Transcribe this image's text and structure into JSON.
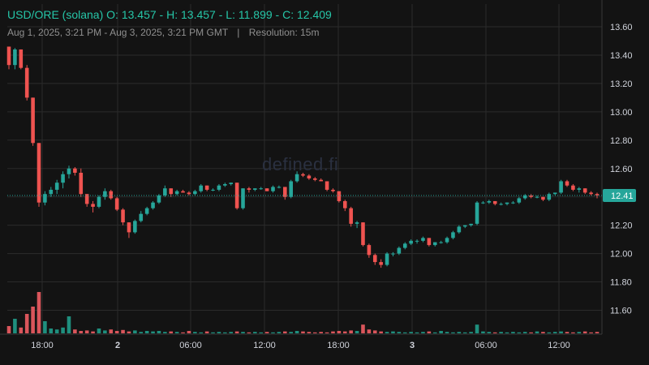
{
  "header": {
    "symbol": "USD/ORE (solana)",
    "open_label": "O:",
    "open": "13.457",
    "high_label": "H:",
    "high": "13.457",
    "low_label": "L:",
    "low": "11.899",
    "close_label": "C:",
    "close": "12.409",
    "date_range": "Aug 1, 2025, 3:21 PM - Aug 3, 2025, 3:21 PM GMT",
    "separator": "|",
    "resolution": "Resolution: 15m"
  },
  "watermark": "defined.fi",
  "colors": {
    "background": "#131313",
    "grid": "#2b2b2b",
    "up": "#26a69a",
    "down": "#ef5350",
    "up_volume": "#1f8f7e",
    "down_volume": "#d9555b",
    "price_line": "#26a69a",
    "axis_text": "#d1d4dc"
  },
  "chart_data": {
    "type": "candlestick",
    "title": "USD/ORE (solana)",
    "resolution": "15m",
    "y_axis": {
      "ticks": [
        "13.60",
        "13.40",
        "13.20",
        "13.00",
        "12.80",
        "12.60",
        "12.40",
        "12.20",
        "12.00",
        "11.80",
        "11.60"
      ],
      "range": [
        11.49,
        13.64
      ],
      "scale": "linear",
      "position": "right"
    },
    "x_axis": {
      "ticks": [
        {
          "label": "18:00",
          "bold": false
        },
        {
          "label": "2",
          "bold": true
        },
        {
          "label": "06:00",
          "bold": false
        },
        {
          "label": "12:00",
          "bold": false
        },
        {
          "label": "18:00",
          "bold": false
        },
        {
          "label": "3",
          "bold": true
        },
        {
          "label": "06:00",
          "bold": false
        },
        {
          "label": "12:00",
          "bold": false
        }
      ]
    },
    "last_price": {
      "value": 12.41,
      "label": "12.41"
    },
    "grid": true,
    "candles": [
      [
        13.46,
        13.46,
        13.3,
        13.33
      ],
      [
        13.33,
        13.45,
        13.3,
        13.44
      ],
      [
        13.44,
        13.44,
        13.3,
        13.31
      ],
      [
        13.31,
        13.33,
        13.08,
        13.1
      ],
      [
        13.1,
        13.1,
        12.76,
        12.78
      ],
      [
        12.78,
        12.78,
        12.33,
        12.36
      ],
      [
        12.36,
        12.44,
        12.34,
        12.42
      ],
      [
        12.42,
        12.47,
        12.4,
        12.45
      ],
      [
        12.45,
        12.52,
        12.42,
        12.5
      ],
      [
        12.5,
        12.58,
        12.46,
        12.56
      ],
      [
        12.56,
        12.62,
        12.53,
        12.6
      ],
      [
        12.6,
        12.61,
        12.55,
        12.57
      ],
      [
        12.57,
        12.6,
        12.4,
        12.42
      ],
      [
        12.42,
        12.42,
        12.33,
        12.35
      ],
      [
        12.35,
        12.37,
        12.29,
        12.33
      ],
      [
        12.33,
        12.41,
        12.32,
        12.4
      ],
      [
        12.4,
        12.46,
        12.38,
        12.44
      ],
      [
        12.44,
        12.45,
        12.38,
        12.39
      ],
      [
        12.39,
        12.4,
        12.3,
        12.31
      ],
      [
        12.31,
        12.32,
        12.2,
        12.22
      ],
      [
        12.22,
        12.22,
        12.11,
        12.15
      ],
      [
        12.15,
        12.24,
        12.14,
        12.23
      ],
      [
        12.23,
        12.3,
        12.22,
        12.28
      ],
      [
        12.28,
        12.33,
        12.27,
        12.32
      ],
      [
        12.32,
        12.37,
        12.31,
        12.36
      ],
      [
        12.36,
        12.42,
        12.35,
        12.41
      ],
      [
        12.41,
        12.48,
        12.4,
        12.46
      ],
      [
        12.46,
        12.46,
        12.4,
        12.42
      ],
      [
        12.42,
        12.45,
        12.41,
        12.44
      ],
      [
        12.44,
        12.45,
        12.43,
        12.43
      ],
      [
        12.43,
        12.44,
        12.41,
        12.42
      ],
      [
        12.42,
        12.45,
        12.41,
        12.44
      ],
      [
        12.44,
        12.49,
        12.43,
        12.48
      ],
      [
        12.48,
        12.48,
        12.44,
        12.45
      ],
      [
        12.45,
        12.46,
        12.44,
        12.45
      ],
      [
        12.45,
        12.49,
        12.44,
        12.48
      ],
      [
        12.48,
        12.5,
        12.47,
        12.49
      ],
      [
        12.49,
        12.5,
        12.48,
        12.5
      ],
      [
        12.5,
        12.5,
        12.31,
        12.32
      ],
      [
        12.32,
        12.46,
        12.31,
        12.46
      ],
      [
        12.46,
        12.47,
        12.43,
        12.45
      ],
      [
        12.45,
        12.46,
        12.44,
        12.46
      ],
      [
        12.46,
        12.47,
        12.45,
        12.46
      ],
      [
        12.46,
        12.46,
        12.44,
        12.44
      ],
      [
        12.44,
        12.48,
        12.43,
        12.47
      ],
      [
        12.47,
        12.48,
        12.46,
        12.47
      ],
      [
        12.47,
        12.47,
        12.38,
        12.4
      ],
      [
        12.4,
        12.52,
        12.39,
        12.51
      ],
      [
        12.51,
        12.58,
        12.5,
        12.56
      ],
      [
        12.56,
        12.57,
        12.54,
        12.55
      ],
      [
        12.55,
        12.56,
        12.52,
        12.53
      ],
      [
        12.53,
        12.54,
        12.51,
        12.52
      ],
      [
        12.52,
        12.53,
        12.51,
        12.51
      ],
      [
        12.51,
        12.51,
        12.44,
        12.45
      ],
      [
        12.45,
        12.46,
        12.43,
        12.44
      ],
      [
        12.44,
        12.44,
        12.36,
        12.37
      ],
      [
        12.37,
        12.38,
        12.3,
        12.32
      ],
      [
        12.32,
        12.33,
        12.19,
        12.21
      ],
      [
        12.21,
        12.23,
        12.18,
        12.22
      ],
      [
        12.22,
        12.22,
        12.05,
        12.06
      ],
      [
        12.06,
        12.07,
        11.97,
        11.99
      ],
      [
        11.99,
        12.0,
        11.92,
        11.94
      ],
      [
        11.94,
        11.96,
        11.9,
        11.92
      ],
      [
        11.92,
        12.01,
        11.91,
        12.0
      ],
      [
        12.0,
        12.01,
        11.98,
        12.0
      ],
      [
        12.0,
        12.05,
        11.99,
        12.04
      ],
      [
        12.04,
        12.08,
        12.03,
        12.07
      ],
      [
        12.07,
        12.1,
        12.06,
        12.09
      ],
      [
        12.09,
        12.1,
        12.07,
        12.09
      ],
      [
        12.09,
        12.12,
        12.08,
        12.11
      ],
      [
        12.11,
        12.11,
        12.05,
        12.06
      ],
      [
        12.06,
        12.08,
        12.05,
        12.08
      ],
      [
        12.08,
        12.09,
        12.07,
        12.08
      ],
      [
        12.08,
        12.12,
        12.07,
        12.11
      ],
      [
        12.11,
        12.16,
        12.1,
        12.15
      ],
      [
        12.15,
        12.2,
        12.14,
        12.19
      ],
      [
        12.19,
        12.2,
        12.18,
        12.2
      ],
      [
        12.2,
        12.21,
        12.19,
        12.21
      ],
      [
        12.21,
        12.37,
        12.2,
        12.36
      ],
      [
        12.36,
        12.37,
        12.35,
        12.36
      ],
      [
        12.36,
        12.38,
        12.35,
        12.37
      ],
      [
        12.37,
        12.37,
        12.34,
        12.35
      ],
      [
        12.35,
        12.36,
        12.34,
        12.35
      ],
      [
        12.35,
        12.36,
        12.34,
        12.36
      ],
      [
        12.36,
        12.37,
        12.35,
        12.36
      ],
      [
        12.36,
        12.4,
        12.35,
        12.39
      ],
      [
        12.39,
        12.42,
        12.38,
        12.41
      ],
      [
        12.41,
        12.42,
        12.39,
        12.4
      ],
      [
        12.4,
        12.41,
        12.39,
        12.4
      ],
      [
        12.4,
        12.4,
        12.37,
        12.38
      ],
      [
        12.38,
        12.43,
        12.37,
        12.42
      ],
      [
        12.42,
        12.43,
        12.41,
        12.43
      ],
      [
        12.43,
        12.52,
        12.42,
        12.51
      ],
      [
        12.51,
        12.52,
        12.47,
        12.48
      ],
      [
        12.48,
        12.49,
        12.44,
        12.45
      ],
      [
        12.45,
        12.47,
        12.43,
        12.46
      ],
      [
        12.46,
        12.46,
        12.42,
        12.43
      ],
      [
        12.43,
        12.44,
        12.41,
        12.42
      ],
      [
        12.42,
        12.43,
        12.39,
        12.41
      ]
    ],
    "volumes": [
      0.15,
      0.3,
      0.12,
      0.4,
      0.55,
      0.85,
      0.25,
      0.1,
      0.08,
      0.12,
      0.35,
      0.08,
      0.05,
      0.06,
      0.04,
      0.1,
      0.06,
      0.08,
      0.05,
      0.07,
      0.04,
      0.06,
      0.03,
      0.05,
      0.04,
      0.05,
      0.03,
      0.04,
      0.03,
      0.02,
      0.05,
      0.03,
      0.02,
      0.04,
      0.02,
      0.03,
      0.02,
      0.03,
      0.04,
      0.03,
      0.02,
      0.03,
      0.02,
      0.03,
      0.02,
      0.03,
      0.04,
      0.03,
      0.05,
      0.04,
      0.03,
      0.02,
      0.03,
      0.02,
      0.04,
      0.05,
      0.04,
      0.06,
      0.05,
      0.18,
      0.08,
      0.06,
      0.04,
      0.03,
      0.04,
      0.03,
      0.02,
      0.03,
      0.02,
      0.03,
      0.04,
      0.02,
      0.05,
      0.03,
      0.02,
      0.03,
      0.02,
      0.03,
      0.18,
      0.04,
      0.03,
      0.02,
      0.03,
      0.02,
      0.03,
      0.02,
      0.03,
      0.02,
      0.04,
      0.03,
      0.02,
      0.03,
      0.04,
      0.03,
      0.02,
      0.03,
      0.04,
      0.02,
      0.03
    ]
  }
}
